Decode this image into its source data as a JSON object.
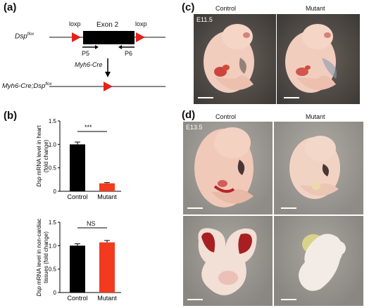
{
  "panels": {
    "a": {
      "letter": "(a)",
      "allele_prefix": "Dsp",
      "allele_superscript": "flox",
      "loxp_left": "loxp",
      "loxp_right": "loxp",
      "exon_label": "Exon 2",
      "primer_forward": "P5",
      "primer_reverse": "P6",
      "cre_label": "Myh6-Cre",
      "recombined_prefix": "Myh6-Cre;Dsp",
      "recombined_superscript": "flox",
      "colors": {
        "loxp": "#e8201a",
        "exon": "#000000",
        "line": "#888888"
      }
    },
    "b": {
      "letter": "(b)",
      "significance_top": "***",
      "significance_bottom": "NS"
    },
    "c": {
      "letter": "(c)",
      "col_control": "Control",
      "col_mutant": "Mutant",
      "stage": "E11.5"
    },
    "d": {
      "letter": "(d)",
      "col_control": "Control",
      "col_mutant": "Mutant",
      "stage": "E13.5"
    }
  },
  "chart_data": [
    {
      "type": "bar",
      "categories": [
        "Control",
        "Mutant"
      ],
      "values": [
        1.0,
        0.17
      ],
      "errors": [
        0.05,
        0.015
      ],
      "ylabel_italic": "Dsp",
      "ylabel_rest": " mRNA level in heart",
      "ylabel_line2": "(fold change)",
      "yticks": [
        "0",
        "0.5",
        "1.0",
        "1.5"
      ],
      "ylim": [
        0,
        1.5
      ],
      "colors": [
        "#000000",
        "#f23a1f"
      ]
    },
    {
      "type": "bar",
      "categories": [
        "Control",
        "Mutant"
      ],
      "values": [
        1.0,
        1.07
      ],
      "errors": [
        0.04,
        0.04
      ],
      "ylabel_italic": "Dsp",
      "ylabel_rest": " mRNA level in non-cardiac",
      "ylabel_line2": "tissues (fold change)",
      "yticks": [
        "0",
        "0.5",
        "1.0",
        "1.5"
      ],
      "ylim": [
        0,
        1.5
      ],
      "colors": [
        "#000000",
        "#f23a1f"
      ]
    }
  ]
}
